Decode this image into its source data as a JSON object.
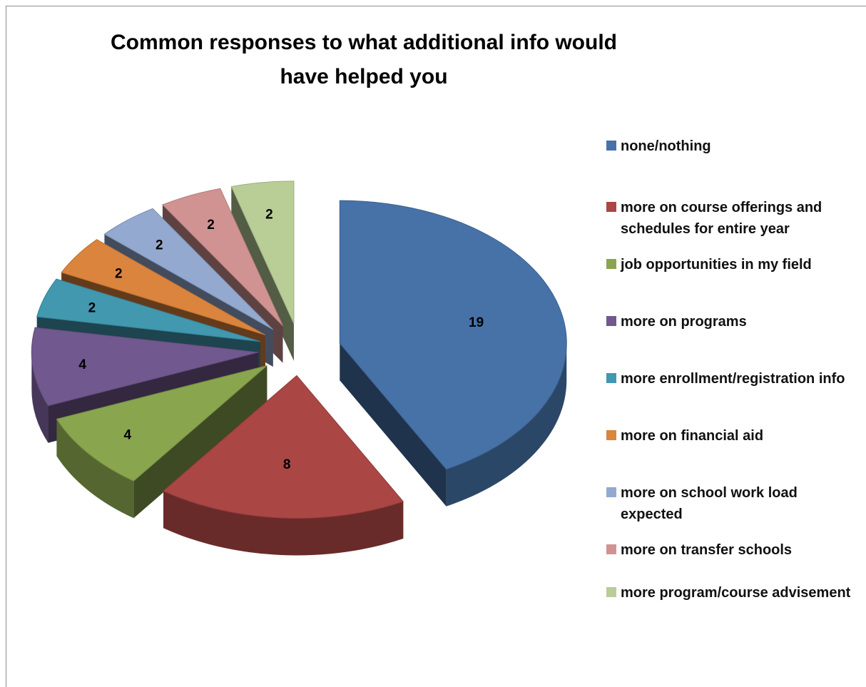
{
  "chart_data": {
    "type": "pie",
    "title": "Common responses to what additional info would have helped you",
    "legend_position": "right",
    "categories": [
      "none/nothing",
      "more on course offerings and schedules for entire year",
      "job opportunities in my field",
      "more on programs",
      "more enrollment/registration info",
      "more on financial aid",
      "more on school work load expected",
      "more on transfer schools",
      "more program/course advisement"
    ],
    "values": [
      19,
      8,
      4,
      4,
      2,
      2,
      2,
      2,
      2
    ],
    "colors": [
      "#4672a8",
      "#aa4644",
      "#89a54e",
      "#71588f",
      "#4198af",
      "#db843d",
      "#93a9cf",
      "#d19392",
      "#b9cd96"
    ],
    "exploded": true,
    "three_d": true,
    "data_labels": true
  }
}
